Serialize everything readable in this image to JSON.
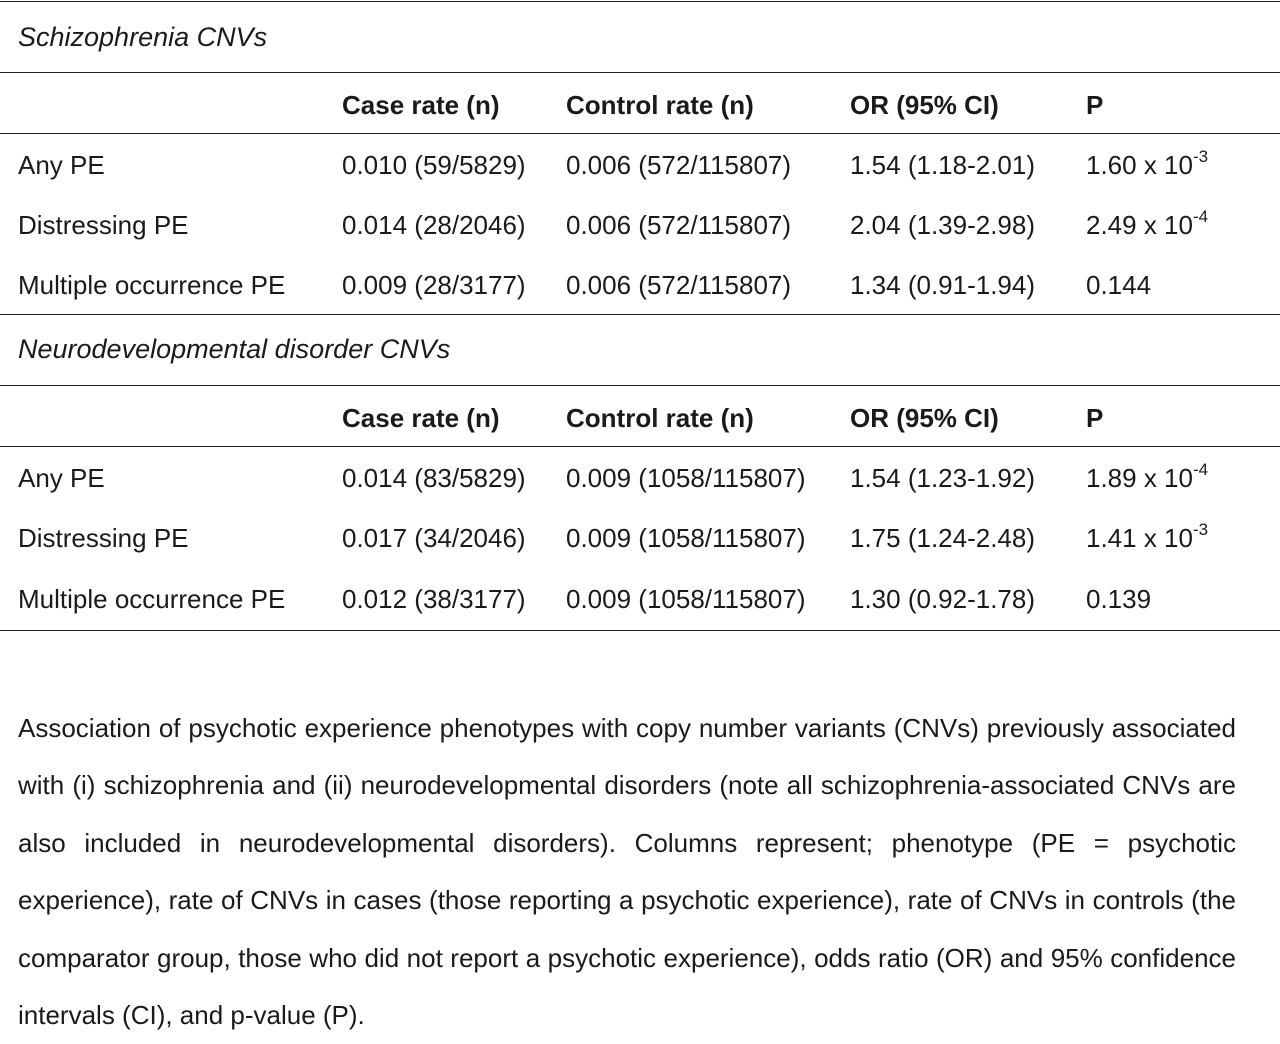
{
  "header": {
    "col_case": "Case rate (n)",
    "col_control": "Control rate (n)",
    "col_or": "OR (95% CI)",
    "col_p": "P"
  },
  "schizophrenia": {
    "title": "Schizophrenia CNVs",
    "rows": [
      {
        "phenotype": "Any PE",
        "case": "0.010 (59/5829)",
        "control": "0.006 (572/115807)",
        "or": "1.54 (1.18-2.01)",
        "p_base": "1.60 x 10",
        "p_exp": "-3"
      },
      {
        "phenotype": "Distressing PE",
        "case": "0.014 (28/2046)",
        "control": "0.006 (572/115807)",
        "or": "2.04 (1.39-2.98)",
        "p_base": "2.49 x 10",
        "p_exp": "-4"
      },
      {
        "phenotype": "Multiple occurrence PE",
        "case": "0.009 (28/3177)",
        "control": "0.006 (572/115807)",
        "or": "1.34 (0.91-1.94)",
        "p_base": "0.144",
        "p_exp": ""
      }
    ]
  },
  "neurodevelopmental": {
    "title": "Neurodevelopmental disorder CNVs",
    "rows": [
      {
        "phenotype": "Any PE",
        "case": "0.014 (83/5829)",
        "control": "0.009 (1058/115807)",
        "or": "1.54 (1.23-1.92)",
        "p_base": "1.89 x 10",
        "p_exp": "-4"
      },
      {
        "phenotype": "Distressing PE",
        "case": "0.017 (34/2046)",
        "control": "0.009 (1058/115807)",
        "or": "1.75 (1.24-2.48)",
        "p_base": "1.41 x 10",
        "p_exp": "-3"
      },
      {
        "phenotype": "Multiple occurrence PE",
        "case": "0.012 (38/3177)",
        "control": "0.009 (1058/115807)",
        "or": "1.30 (0.92-1.78)",
        "p_base": "0.139",
        "p_exp": ""
      }
    ]
  },
  "caption": "Association of psychotic experience phenotypes with copy number variants (CNVs) previously associated with (i) schizophrenia and (ii) neurodevelopmental disorders (note all schizophrenia-associated CNVs are also included in neurodevelopmental disorders). Columns represent; phenotype (PE = psychotic experience), rate of CNVs in cases (those reporting a psychotic experience), rate of CNVs in controls (the comparator group, those who did not report a psychotic experience), odds ratio (OR) and 95% confidence intervals (CI), and p-value (P)."
}
